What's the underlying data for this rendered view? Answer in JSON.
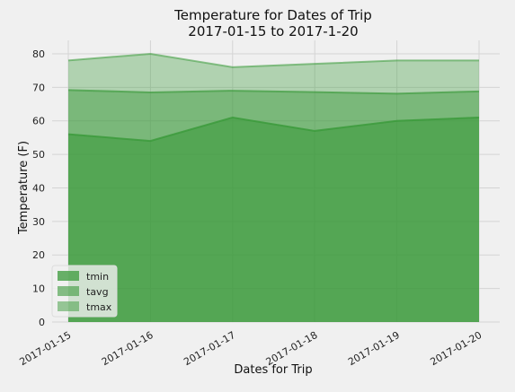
{
  "chart_data": {
    "type": "area",
    "title_line1": "Temperature for Dates of Trip",
    "title_line2": "2017-01-15 to 2017-1-20",
    "xlabel": "Dates for Trip",
    "ylabel": "Temperature (F)",
    "categories": [
      "2017-01-15",
      "2017-01-16",
      "2017-01-17",
      "2017-01-18",
      "2017-01-19",
      "2017-01-20"
    ],
    "ylim": [
      0,
      84
    ],
    "yticks": [
      0,
      10,
      20,
      30,
      40,
      50,
      60,
      70,
      80
    ],
    "stacked": false,
    "grid": true,
    "legend_position": "bottom-left",
    "series": [
      {
        "name": "tmin",
        "values": [
          56,
          54,
          61,
          57,
          60,
          61
        ],
        "color": "#3a9a3a",
        "opacity": 0.6
      },
      {
        "name": "tavg",
        "values": [
          69.2,
          68.5,
          69.0,
          68.6,
          68.1,
          68.8
        ],
        "color": "#3a9a3a",
        "opacity": 0.45
      },
      {
        "name": "tmax",
        "values": [
          78,
          80,
          76,
          77,
          78,
          78
        ],
        "color": "#3a9a3a",
        "opacity": 0.35
      }
    ]
  }
}
